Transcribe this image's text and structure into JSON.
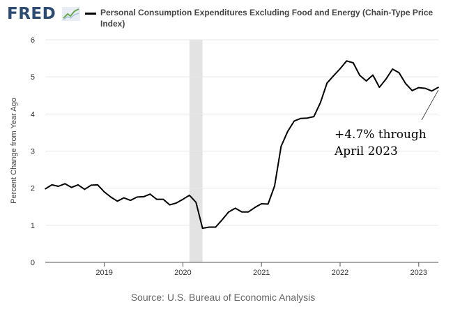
{
  "header": {
    "logo_text": "FRED",
    "logo_icon": "line-chart-icon"
  },
  "legend": {
    "label": "Personal Consumption Expenditures Excluding Food and Energy (Chain-Type Price Index)",
    "color": "#000000"
  },
  "footer": {
    "source": "Source: U.S. Bureau of Economic Analysis"
  },
  "annotation": {
    "line1": "+4.7% through",
    "line2": "April 2023"
  },
  "chart_data": {
    "type": "line",
    "title": "Personal Consumption Expenditures Excluding Food and Energy (Chain-Type Price Index)",
    "ylabel": "Percent Change from Year Ago",
    "xlabel": "",
    "ylim": [
      0,
      6
    ],
    "xlim": [
      "2018-04",
      "2023-04"
    ],
    "yticks": [
      "0",
      "1",
      "2",
      "3",
      "4",
      "5",
      "6"
    ],
    "xticks": [
      {
        "date": "2019-01",
        "label": "2019"
      },
      {
        "date": "2020-01",
        "label": "2020"
      },
      {
        "date": "2021-01",
        "label": "2021"
      },
      {
        "date": "2022-01",
        "label": "2022"
      },
      {
        "date": "2023-01",
        "label": "2023"
      }
    ],
    "grid": "horizontal",
    "recession": {
      "start": "2020-02",
      "end": "2020-04",
      "color": "#e3e3e3"
    },
    "series": [
      {
        "color": "#000000",
        "points": [
          [
            "2018-04",
            1.98
          ],
          [
            "2018-05",
            2.09
          ],
          [
            "2018-06",
            2.05
          ],
          [
            "2018-07",
            2.12
          ],
          [
            "2018-08",
            2.02
          ],
          [
            "2018-09",
            2.09
          ],
          [
            "2018-10",
            1.97
          ],
          [
            "2018-11",
            2.08
          ],
          [
            "2018-12",
            2.09
          ],
          [
            "2019-01",
            1.9
          ],
          [
            "2019-02",
            1.76
          ],
          [
            "2019-03",
            1.65
          ],
          [
            "2019-04",
            1.74
          ],
          [
            "2019-05",
            1.67
          ],
          [
            "2019-06",
            1.76
          ],
          [
            "2019-07",
            1.77
          ],
          [
            "2019-08",
            1.84
          ],
          [
            "2019-09",
            1.7
          ],
          [
            "2019-10",
            1.7
          ],
          [
            "2019-11",
            1.55
          ],
          [
            "2019-12",
            1.6
          ],
          [
            "2020-01",
            1.7
          ],
          [
            "2020-02",
            1.81
          ],
          [
            "2020-03",
            1.62
          ],
          [
            "2020-04",
            0.92
          ],
          [
            "2020-05",
            0.95
          ],
          [
            "2020-06",
            0.95
          ],
          [
            "2020-07",
            1.15
          ],
          [
            "2020-08",
            1.36
          ],
          [
            "2020-09",
            1.46
          ],
          [
            "2020-10",
            1.36
          ],
          [
            "2020-11",
            1.36
          ],
          [
            "2020-12",
            1.48
          ],
          [
            "2021-01",
            1.58
          ],
          [
            "2021-02",
            1.57
          ],
          [
            "2021-03",
            2.06
          ],
          [
            "2021-04",
            3.13
          ],
          [
            "2021-05",
            3.53
          ],
          [
            "2021-06",
            3.81
          ],
          [
            "2021-07",
            3.88
          ],
          [
            "2021-08",
            3.89
          ],
          [
            "2021-09",
            3.93
          ],
          [
            "2021-10",
            4.31
          ],
          [
            "2021-11",
            4.83
          ],
          [
            "2021-12",
            5.03
          ],
          [
            "2022-01",
            5.22
          ],
          [
            "2022-02",
            5.43
          ],
          [
            "2022-03",
            5.38
          ],
          [
            "2022-04",
            5.04
          ],
          [
            "2022-05",
            4.89
          ],
          [
            "2022-06",
            5.05
          ],
          [
            "2022-07",
            4.72
          ],
          [
            "2022-08",
            4.94
          ],
          [
            "2022-09",
            5.21
          ],
          [
            "2022-10",
            5.11
          ],
          [
            "2022-11",
            4.82
          ],
          [
            "2022-12",
            4.63
          ],
          [
            "2023-01",
            4.71
          ],
          [
            "2023-02",
            4.69
          ],
          [
            "2023-03",
            4.62
          ],
          [
            "2023-04",
            4.72
          ]
        ]
      }
    ]
  }
}
